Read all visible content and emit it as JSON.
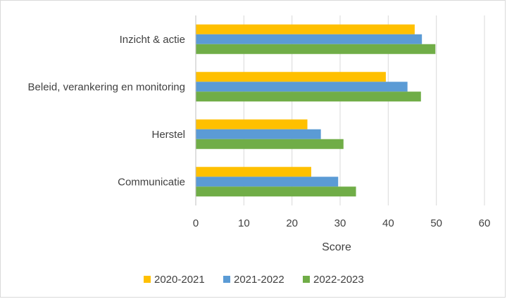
{
  "chart_data": {
    "type": "bar",
    "orientation": "horizontal",
    "categories": [
      "Inzicht & actie",
      "Beleid, verankering en monitoring",
      "Herstel",
      "Communicatie"
    ],
    "series": [
      {
        "name": "2020-2021",
        "color": "#FFC000",
        "values": [
          45.5,
          39.5,
          23.2,
          24.0
        ]
      },
      {
        "name": "2021-2022",
        "color": "#5B9BD5",
        "values": [
          47.0,
          44.0,
          26.0,
          29.6
        ]
      },
      {
        "name": "2022-2023",
        "color": "#70AD47",
        "values": [
          49.8,
          46.8,
          30.7,
          33.3
        ]
      }
    ],
    "xlabel": "Score",
    "ylabel": "",
    "xlim": [
      0,
      60
    ],
    "xticks": [
      0,
      10,
      20,
      30,
      40,
      50,
      60
    ],
    "grid": "vertical",
    "legend_position": "bottom"
  }
}
